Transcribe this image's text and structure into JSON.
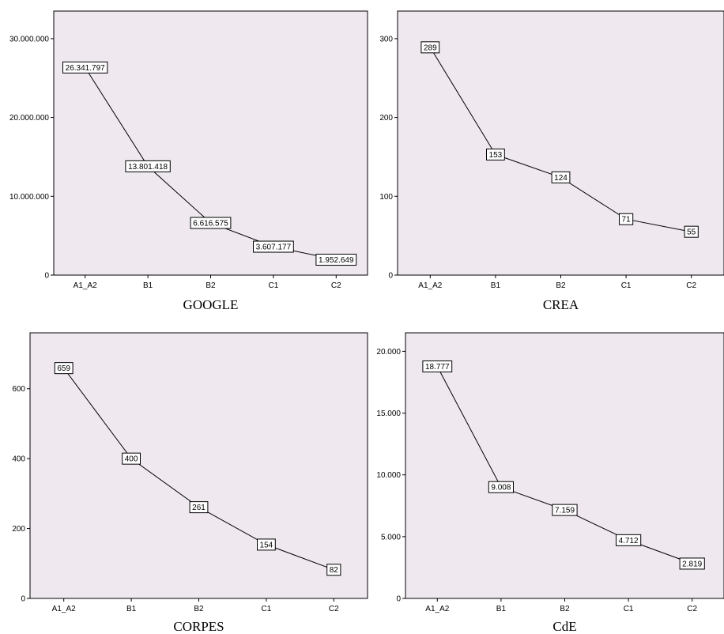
{
  "chart_data": [
    {
      "type": "line",
      "title": "GOOGLE",
      "categories": [
        "A1_A2",
        "B1",
        "B2",
        "C1",
        "C2"
      ],
      "values": [
        26341797,
        13801418,
        6616575,
        3607177,
        1952649
      ],
      "value_labels": [
        "26.341.797",
        "13.801.418",
        "6.616.575",
        "3.607.177",
        "1.952.649"
      ],
      "yticks": [
        0,
        10000000,
        20000000,
        30000000
      ],
      "ytick_labels": [
        "0",
        "10.000.000",
        "20.000.000",
        "30.000.000"
      ],
      "ylim": [
        0,
        33500000
      ],
      "grid": false,
      "background": "#efe8ef"
    },
    {
      "type": "line",
      "title": "CREA",
      "categories": [
        "A1_A2",
        "B1",
        "B2",
        "C1",
        "C2"
      ],
      "values": [
        289,
        153,
        124,
        71,
        55
      ],
      "value_labels": [
        "289",
        "153",
        "124",
        "71",
        "55"
      ],
      "yticks": [
        0,
        100,
        200,
        300
      ],
      "ytick_labels": [
        "0",
        "100",
        "200",
        "300"
      ],
      "ylim": [
        0,
        335
      ],
      "grid": false,
      "background": "#efe8ef"
    },
    {
      "type": "line",
      "title": "CORPES",
      "categories": [
        "A1_A2",
        "B1",
        "B2",
        "C1",
        "C2"
      ],
      "values": [
        659,
        400,
        261,
        154,
        82
      ],
      "value_labels": [
        "659",
        "400",
        "261",
        "154",
        "82"
      ],
      "yticks": [
        0,
        200,
        400,
        600
      ],
      "ytick_labels": [
        "0",
        "200",
        "400",
        "600"
      ],
      "ylim": [
        0,
        760
      ],
      "grid": false,
      "background": "#efe8ef"
    },
    {
      "type": "line",
      "title": "CdE",
      "categories": [
        "A1_A2",
        "B1",
        "B2",
        "C1",
        "C2"
      ],
      "values": [
        18777,
        9008,
        7159,
        4712,
        2819
      ],
      "value_labels": [
        "18.777",
        "9.008",
        "7.159",
        "4.712",
        "2.819"
      ],
      "yticks": [
        0,
        5000,
        10000,
        15000,
        20000
      ],
      "ytick_labels": [
        "0",
        "5.000",
        "10.000",
        "15.000",
        "20.000"
      ],
      "ylim": [
        0,
        21500
      ],
      "grid": false,
      "background": "#efe8ef"
    }
  ]
}
